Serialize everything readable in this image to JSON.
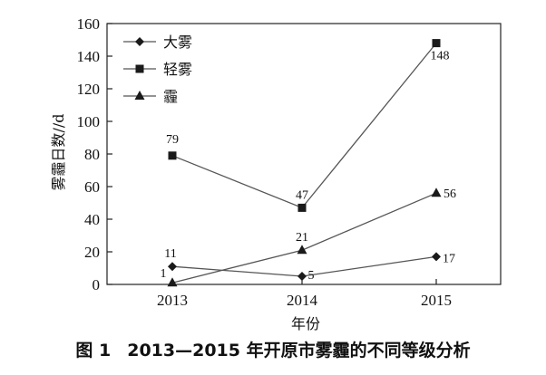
{
  "caption": {
    "figure_number": "图 1",
    "title": "2013—2015 年开原市雾霾的不同等级分析"
  },
  "chart_data": {
    "type": "line",
    "xlabel": "年份",
    "ylabel": "雾霾日数//d",
    "ylim": [
      0,
      160
    ],
    "yticks": [
      0,
      20,
      40,
      60,
      80,
      100,
      120,
      140,
      160
    ],
    "x": [
      "2013",
      "2014",
      "2015"
    ],
    "grid": false,
    "legend_position": "top-left",
    "series": [
      {
        "name": "大雾",
        "marker": "diamond",
        "values": [
          11,
          5,
          17
        ],
        "labels": [
          "11",
          "5",
          "17"
        ]
      },
      {
        "name": "轻雾",
        "marker": "square",
        "values": [
          79,
          47,
          148
        ],
        "labels": [
          "79",
          "47",
          "148"
        ]
      },
      {
        "name": "霾",
        "marker": "triangle",
        "values": [
          1,
          21,
          56
        ],
        "labels": [
          "1",
          "21",
          "56"
        ]
      }
    ],
    "line_color": "#555555",
    "marker_color": "#1a1a1a"
  }
}
